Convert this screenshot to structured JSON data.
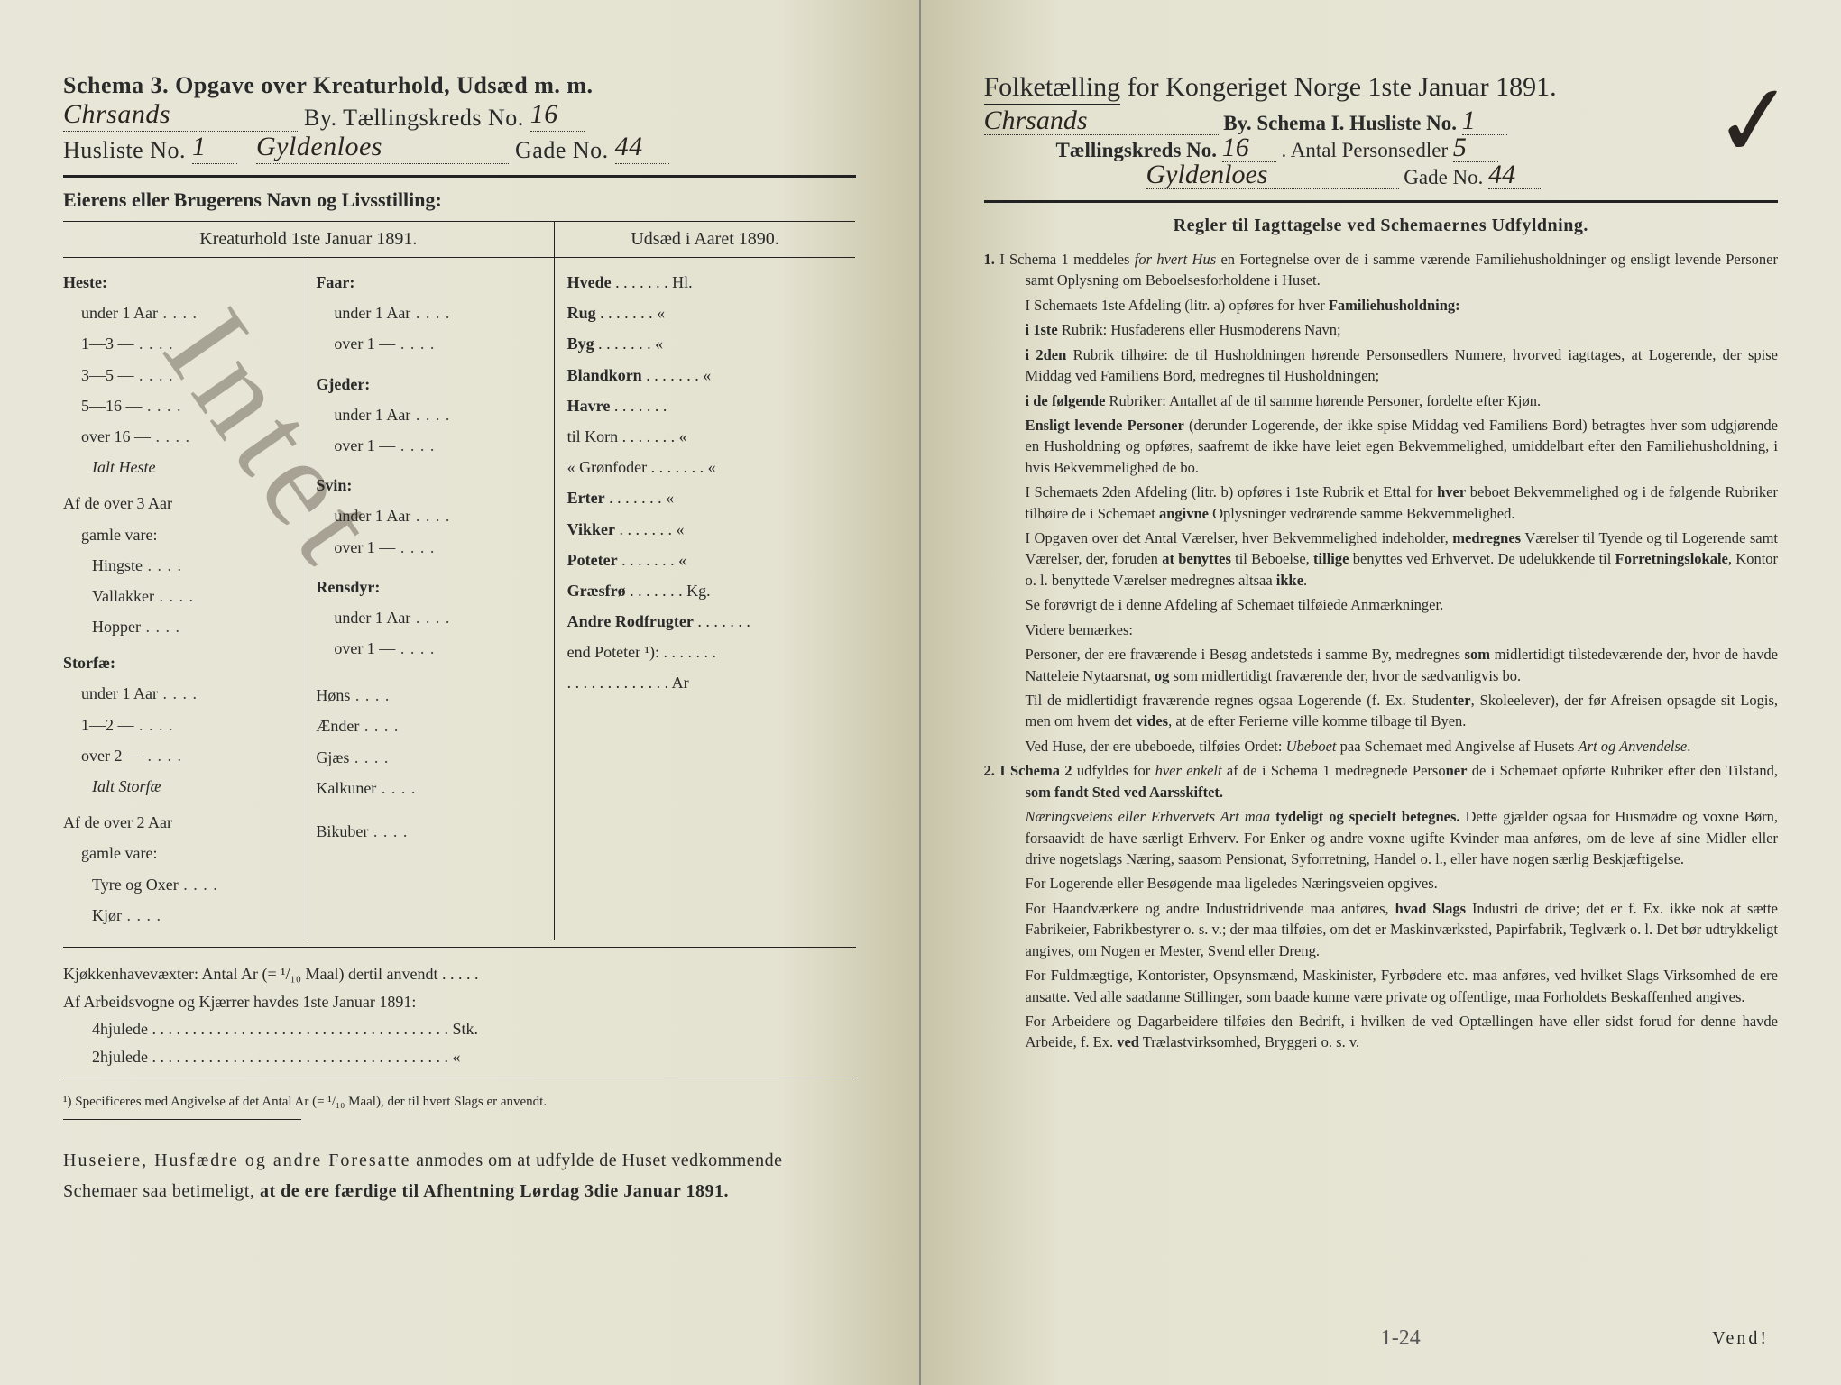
{
  "left": {
    "schema_line": "Schema 3.  Opgave over Kreaturhold, Udsæd m. m.",
    "by_label": "By.  Tællingskreds No.",
    "city_hand": "Chrsands",
    "kreds_no": "16",
    "husliste_label": "Husliste No.",
    "husliste_no": "1",
    "gade_hand": "Gyldenloes",
    "gade_label": "Gade No.",
    "gade_no": "44",
    "owner_label": "Eierens eller Brugerens Navn og Livsstilling:",
    "col_left_hdr": "Kreaturhold 1ste Januar 1891.",
    "col_right_hdr": "Udsæd i Aaret 1890.",
    "colA": {
      "heste": "Heste:",
      "heste_rows": [
        "under 1 Aar",
        "1—3   —",
        "3—5   —",
        "5—16  —",
        "over 16 —"
      ],
      "ialt_heste": "Ialt Heste",
      "af3": "Af de over 3 Aar",
      "gamle": "gamle vare:",
      "af3_rows": [
        "Hingste",
        "Vallakker",
        "Hopper"
      ],
      "storfae": "Storfæ:",
      "storfae_rows": [
        "under 1 Aar",
        "1—2   —",
        "over 2   —"
      ],
      "ialt_storfae": "Ialt Storfæ",
      "af2": "Af de over 2 Aar",
      "gamle2": "gamle vare:",
      "af2_rows": [
        "Tyre og Oxer",
        "Kjør"
      ]
    },
    "colB": {
      "faar": "Faar:",
      "faar_rows": [
        "under 1 Aar",
        "over 1   —"
      ],
      "gjeder": "Gjeder:",
      "gjeder_rows": [
        "under 1 Aar",
        "over 1   —"
      ],
      "svin": "Svin:",
      "svin_rows": [
        "under 1 Aar",
        "over 1   —"
      ],
      "rensdyr": "Rensdyr:",
      "rensdyr_rows": [
        "under 1 Aar",
        "over 1   —"
      ],
      "hons": "Høns",
      "aender": "Ænder",
      "gjaes": "Gjæs",
      "kalkuner": "Kalkuner",
      "bikuber": "Bikuber"
    },
    "colC": {
      "rows": [
        {
          "label": "Hvede",
          "unit": "Hl."
        },
        {
          "label": "Rug",
          "unit": "«"
        },
        {
          "label": "Byg",
          "unit": "«"
        },
        {
          "label": "Blandkorn",
          "unit": "«"
        },
        {
          "label": "Havre",
          "unit": ""
        },
        {
          "label": "  til Korn",
          "unit": "«"
        },
        {
          "label": "«  Grønfoder",
          "unit": "«"
        },
        {
          "label": "Erter",
          "unit": "«"
        },
        {
          "label": "Vikker",
          "unit": "«"
        },
        {
          "label": "Poteter",
          "unit": "«"
        },
        {
          "label": "Græsfrø",
          "unit": "Kg."
        },
        {
          "label": "Andre Rodfrugter",
          "unit": ""
        },
        {
          "label": "  end Poteter ¹):",
          "unit": ""
        },
        {
          "label": "",
          "unit": "Ar"
        }
      ]
    },
    "kjokken": "Kjøkkenhavevæxter:  Antal Ar (= ¹/₁₀ Maal) dertil anvendt . . . . .",
    "arbeids": "Af Arbeidsvogne og Kjærrer havdes 1ste Januar 1891:",
    "hjul4": "4hjulede . . . . . . . . . . . . . . . . . . . . . . . . . . . . . . . . . . . . . Stk.",
    "hjul2": "2hjulede . . . . . . . . . . . . . . . . . . . . . . . . . . . . . . . . . . . . .   «",
    "footnote": "¹) Specificeres med Angivelse af det Antal Ar (= ¹/₁₀ Maal), der til hvert Slags er anvendt.",
    "closing1": "Huseiere, Husfædre og andre Foresatte anmodes om at udfylde de Huset vedkommende Schemaer saa betimeligt, at de ere færdige til Afhentning Lørdag 3die Januar 1891.",
    "intet": "Intet"
  },
  "right": {
    "title_a": "Folketælling",
    "title_b": " for Kongeriget Norge 1ste Januar 1891.",
    "city_hand": "Chrsands",
    "by_label": "By.   Schema I.   Husliste No.",
    "husliste_no": "1",
    "kreds_label": "Tællingskreds No.",
    "kreds_no": "16",
    "person_label": ".   Antal Personsedler",
    "person_no": "5",
    "gade_hand": "Gyldenloes",
    "gade_label": "Gade No.",
    "gade_no": "44",
    "regler": "Regler til Iagttagelse ved Schemaernes Udfyldning.",
    "rules": [
      {
        "n": "1.",
        "t": "I Schema 1 meddeles <i>for hvert Hus</i> en Fortegnelse over de i samme værende Familiehusholdninger og ensligt levende Personer samt Oplysning om Beboelsesforholdene i Huset."
      },
      {
        "t": "I Schemaets 1ste Afdeling (litr. a) opføres for hver <b>Familiehusholdning:</b>"
      },
      {
        "t": "<b>i 1ste</b> Rubrik: Husfaderens eller Husmoderens Navn;"
      },
      {
        "t": "<b>i 2den</b> Rubrik tilhøire: de til Husholdningen hørende Personsedlers Numere, hvorved iagttages, at Logerende, der spise Middag ved Familiens Bord, medregnes til Husholdningen;"
      },
      {
        "t": "<b>i de følgende</b> Rubriker: Antallet af de til samme hørende Personer, fordelte efter Kjøn."
      },
      {
        "t": "<b>Ensligt levende Personer</b> (derunder Logerende, der ikke spise Middag ved Familiens Bord) betragtes hver som udgjørende en Husholdning og opføres, saafremt de ikke have leiet egen Bekvemmelighed, umiddelbart efter den Familiehusholdning, i hvis Bekvemmelighed de bo."
      },
      {
        "t": "I Schemaets 2den Afdeling (litr. b) opføres i 1ste Rubrik et Ettal for <b>hver</b> beboet Bekvemmelighed og i de følgende Rubriker tilhøire de i Schemaet <b>angivne</b> Oplysninger vedrørende samme Bekvemmelighed."
      },
      {
        "t": "I Opgaven over det Antal Værelser, hver Bekvemmelighed indeholder, <b>medregnes</b> Værelser til Tyende og til Logerende samt Værelser, der, foruden <b>at benyttes</b> til Beboelse, <b>tillige</b> benyttes ved Erhvervet. De udelukkende til <b>Forretningslokale</b>, Kontor o. l. benyttede Værelser medregnes altsaa <b>ikke</b>."
      },
      {
        "t": "Se forøvrigt de i denne Afdeling af Schemaet tilføiede Anmærkninger."
      },
      {
        "t": "Videre bemærkes:"
      },
      {
        "t": "Personer, der ere fraværende i Besøg andetsteds i samme By, medregnes <b>som</b> midlertidigt tilstedeværende der, hvor de havde Natteleie Nytaarsnat, <b>og</b> som midlertidigt fraværende der, hvor de sædvanligvis bo."
      },
      {
        "t": "Til de midlertidigt fraværende regnes ogsaa Logerende (f. Ex. Studen<b>ter</b>, Skoleelever), der før Afreisen opsagde sit Logis, men om hvem det <b>vides</b>, at de efter Ferierne ville komme tilbage til Byen."
      },
      {
        "t": "Ved Huse, der ere ubeboede, tilføies Ordet: <i>Ubeboet</i> paa Schemaet med Angivelse af Husets <i>Art og Anvendelse</i>."
      },
      {
        "n": "2.",
        "t": "<b>I Schema 2</b> udfyldes for <i>hver enkelt</i> af de i Schema 1 medregnede Perso<b>ner</b> de i Schemaet opførte Rubriker efter den Tilstand, <b>som fandt Sted ved Aarsskiftet.</b>"
      },
      {
        "t": "<i>Næringsveiens eller Erhvervets Art maa</i> <b>tydeligt og specielt betegnes.</b> Dette gjælder ogsaa for Husmødre og voxne Børn, forsaavidt de have særligt Erhverv. For Enker og andre voxne ugifte Kvinder maa anføres, om de leve af sine Midler eller drive nogetslags Næring, saasom Pensionat, Syforretning, Handel o. l., eller have nogen særlig Beskjæftigelse."
      },
      {
        "t": "For Logerende eller Besøgende maa ligeledes Næringsveien opgives."
      },
      {
        "t": "For Haandværkere og andre Industridrivende maa anføres, <b>hvad Slags</b> Industri de drive; det er f. Ex. ikke nok at sætte Fabrikeier, Fabrikbestyrer o. s. v.; der maa tilføies, om det er Maskinværksted, Papirfabrik, Teglværk o. l. Det bør udtrykkeligt angives, om Nogen er Mester, Svend eller Dreng."
      },
      {
        "t": "For Fuldmægtige, Kontorister, Opsynsmænd, Maskinister, Fyrbødere etc. maa anføres, ved hvilket Slags Virksomhed de ere ansatte. Ved alle saadanne Stillinger, som baade kunne være private og offentlige, maa Forholdets Beskaffenhed angives."
      },
      {
        "t": "For Arbeidere og Dagarbeidere tilføies den Bedrift, i hvilken de ved Optællingen have eller sidst forud for denne havde Arbeide, f. Ex. <b>ved</b> Trælastvirksomhed, Bryggeri o. s. v."
      }
    ],
    "vend": "Vend!",
    "pencil": "1-24"
  },
  "colors": {
    "paper": "#e4e2d0",
    "ink": "#2a2a2a",
    "hand": "#2a2520"
  }
}
